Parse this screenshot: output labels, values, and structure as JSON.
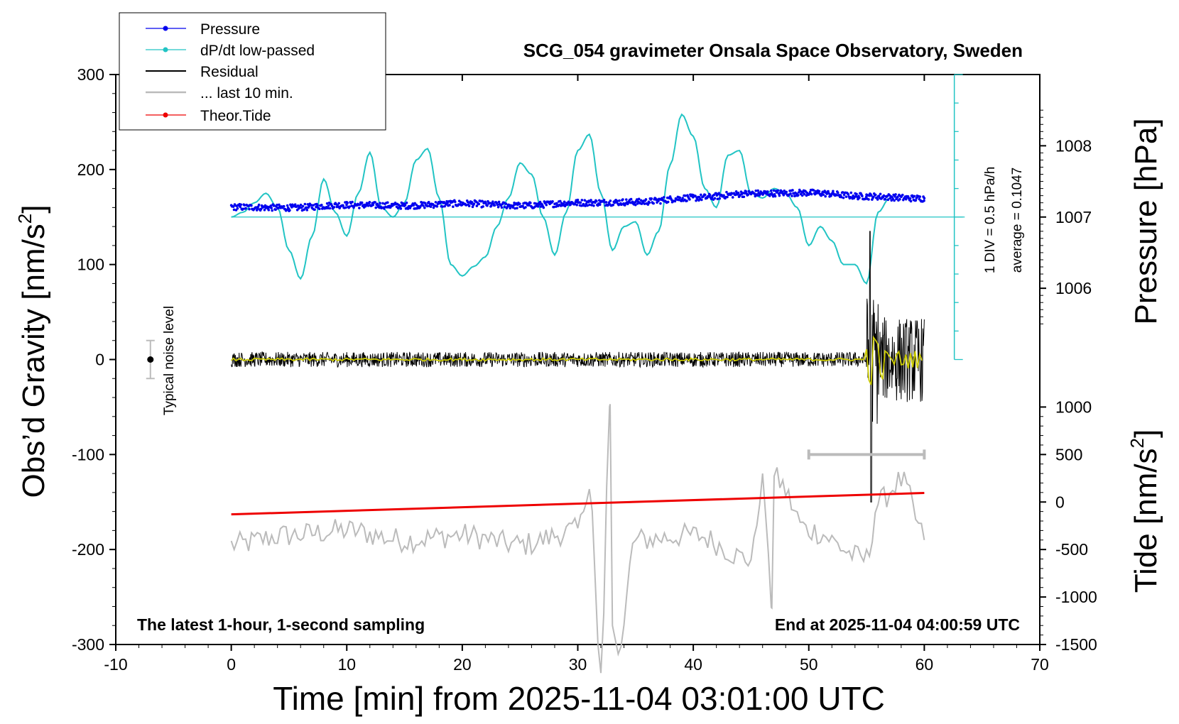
{
  "chart_data": {
    "type": "line",
    "title": "SCG_054 gravimeter Onsala Space Observatory, Sweden",
    "xlabel": "Time [min] from 2025-11-04 03:01:00 UTC",
    "ylabel_left": "Obs’d Gravity [nm/s",
    "ylabel_left_sup": "2",
    "ylabel_left_close": "]",
    "ylabel_pressure": "Pressure [hPa]",
    "ylabel_tide": "Tide [nm/s",
    "ylabel_tide_sup": "2",
    "ylabel_tide_close": "]",
    "xlim": [
      -10,
      70
    ],
    "ylim": [
      -300,
      300
    ],
    "x_ticks": [
      "-10",
      "0",
      "10",
      "20",
      "30",
      "40",
      "50",
      "60",
      "70"
    ],
    "y_ticks": [
      "300",
      "200",
      "100",
      "0",
      "-100",
      "-200",
      "-300"
    ],
    "pressure_ticks": [
      "1008",
      "1007",
      "1006"
    ],
    "pressure_ticks_values": [
      1008,
      1007,
      1006
    ],
    "tide_ticks": [
      "1000",
      "500",
      "0",
      "-500",
      "-1000",
      "-1500"
    ],
    "tide_ticks_values": [
      1000,
      500,
      0,
      -500,
      -1000,
      -1500
    ],
    "pressure_scale_label": "1 DIV = 0.5 hPa/h",
    "average_label": "average = 0.1047",
    "noise_label": "Typical noise level",
    "footer_left": "The latest 1-hour, 1-second sampling",
    "footer_right": "End at 2025-11-04 04:00:59 UTC",
    "legend": [
      "Pressure",
      "dP/dt low-passed",
      "Residual",
      "... last 10 min.",
      "Theor.Tide"
    ],
    "legend_placement": "top-left",
    "colors": {
      "pressure": "#0000ee",
      "dpdt": "#22c4c4",
      "residual": "#000000",
      "last10": "#bbbbbb",
      "tide": "#ee0000",
      "residual_lowpass": "#cccc00"
    },
    "series": [
      {
        "name": "Pressure",
        "units": "hPa",
        "x": [
          0,
          5,
          10,
          15,
          20,
          25,
          30,
          35,
          40,
          45,
          50,
          55,
          60
        ],
        "values": [
          1007.14,
          1007.13,
          1007.17,
          1007.16,
          1007.19,
          1007.16,
          1007.2,
          1007.21,
          1007.27,
          1007.33,
          1007.34,
          1007.29,
          1007.26
        ]
      },
      {
        "name": "dP/dt low-passed",
        "units": "nm/s2 axis (1 DIV = 0.5 hPa/h)",
        "x": [
          0,
          1,
          2,
          3,
          4,
          5,
          6,
          7,
          8,
          9,
          10,
          11,
          12,
          13,
          14,
          15,
          16,
          17,
          18,
          19,
          20,
          21,
          22,
          23,
          24,
          25,
          26,
          27,
          28,
          29,
          30,
          31,
          32,
          33,
          34,
          35,
          36,
          37,
          38,
          39,
          40,
          41,
          42,
          43,
          44,
          45,
          46,
          47,
          48,
          49,
          50,
          51,
          52,
          53,
          54,
          55,
          56,
          57
        ],
        "values": [
          150,
          155,
          165,
          175,
          160,
          115,
          85,
          130,
          190,
          155,
          130,
          175,
          218,
          160,
          150,
          165,
          210,
          222,
          170,
          100,
          88,
          98,
          108,
          140,
          170,
          207,
          195,
          150,
          110,
          155,
          220,
          237,
          175,
          115,
          140,
          145,
          110,
          135,
          205,
          258,
          235,
          180,
          160,
          215,
          220,
          175,
          170,
          180,
          175,
          160,
          120,
          140,
          125,
          100,
          100,
          80,
          155,
          170
        ]
      },
      {
        "name": "Residual",
        "units": "nm/s2",
        "x": [
          0,
          10,
          20,
          30,
          40,
          50,
          54,
          55,
          55.3,
          56,
          57,
          58,
          59,
          60
        ],
        "values": [
          0,
          0,
          0,
          0,
          0,
          0,
          5,
          20,
          135,
          -40,
          50,
          -70,
          60,
          -50
        ]
      },
      {
        "name": "... last 10 min.",
        "units": "nm/s2 (time axis stretched over 0-60)",
        "x": [
          0,
          5,
          10,
          15,
          20,
          25,
          30,
          31,
          32,
          32.8,
          33,
          33.5,
          35,
          40,
          45,
          46,
          46.8,
          47,
          50,
          55,
          56,
          58,
          60
        ],
        "values": [
          -195,
          -185,
          -180,
          -190,
          -185,
          -195,
          -180,
          -130,
          -330,
          -47,
          -280,
          -310,
          -190,
          -185,
          -210,
          -130,
          -255,
          -125,
          -180,
          -210,
          -150,
          -128,
          -185
        ]
      },
      {
        "name": "Theor.Tide",
        "units": "nm/s2 on tide axis",
        "x": [
          0,
          60
        ],
        "values": [
          -130,
          95
        ]
      }
    ]
  }
}
